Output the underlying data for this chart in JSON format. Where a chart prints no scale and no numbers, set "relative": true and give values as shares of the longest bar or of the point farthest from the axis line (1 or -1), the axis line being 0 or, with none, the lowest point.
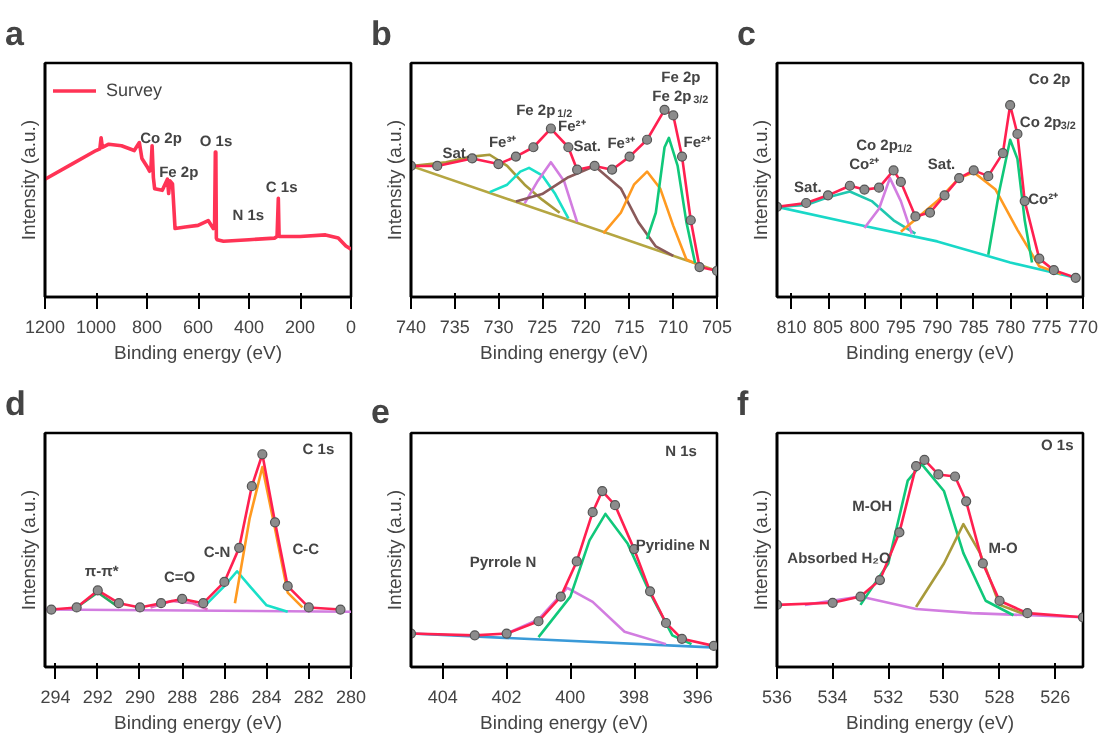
{
  "chart_data": [
    {
      "type": "line",
      "title": "a",
      "xlabel": "Binding energy (eV)",
      "ylabel": "Intensity (a.u.)",
      "relative": true,
      "xlim": [
        1200,
        0
      ],
      "xticks": [
        1200,
        1000,
        800,
        600,
        400,
        200,
        0
      ],
      "tick_labels": "x",
      "grid": false,
      "legend": "top left",
      "series": [
        {
          "name": "Survey",
          "color": "#ff3355",
          "x": [
            1200,
            1100,
            1000,
            985,
            980,
            975,
            950,
            900,
            850,
            830,
            820,
            800,
            790,
            785,
            780,
            775,
            770,
            740,
            720,
            715,
            712,
            710,
            705,
            700,
            690,
            650,
            600,
            560,
            540,
            535,
            532,
            530,
            528,
            525,
            500,
            400,
            300,
            290,
            285,
            282,
            280,
            200,
            100,
            50,
            20,
            0
          ],
          "values": [
            0.74,
            0.83,
            0.92,
            0.93,
            1.0,
            0.94,
            0.96,
            0.95,
            0.92,
            0.97,
            0.87,
            0.82,
            0.79,
            0.8,
            0.95,
            0.75,
            0.68,
            0.67,
            0.74,
            0.65,
            0.7,
            0.73,
            0.72,
            0.71,
            0.43,
            0.44,
            0.45,
            0.48,
            0.43,
            0.45,
            0.91,
            0.91,
            0.37,
            0.36,
            0.35,
            0.36,
            0.37,
            0.38,
            0.62,
            0.38,
            0.38,
            0.38,
            0.39,
            0.37,
            0.32,
            0.3
          ]
        }
      ],
      "annotations": [
        "Co 2p",
        "Fe 2p",
        "O 1s",
        "N 1s",
        "C 1s"
      ]
    },
    {
      "type": "line",
      "title": "b",
      "xlabel": "Binding energy (eV)",
      "ylabel": "Intensity (a.u.)",
      "relative": true,
      "xlim": [
        740,
        705
      ],
      "xticks": [
        740,
        735,
        730,
        725,
        720,
        715,
        710,
        705
      ],
      "tick_labels": "x",
      "grid": false,
      "series": [
        {
          "color": "#b5a642",
          "x": [
            740,
            705
          ],
          "values": [
            0.7,
            0.14
          ]
        },
        {
          "color": "#a89a3a",
          "x": [
            740,
            736,
            733,
            731,
            729,
            727,
            725,
            723
          ],
          "values": [
            0.7,
            0.72,
            0.75,
            0.76,
            0.7,
            0.6,
            0.52,
            0.45
          ]
        },
        {
          "color": "#19e0c8",
          "x": [
            731,
            729,
            727.5,
            726.5,
            725,
            723.5,
            722
          ],
          "values": [
            0.56,
            0.6,
            0.67,
            0.69,
            0.65,
            0.55,
            0.42
          ]
        },
        {
          "color": "#d27de0",
          "x": [
            727,
            725.5,
            724,
            722.5,
            721
          ],
          "values": [
            0.5,
            0.62,
            0.72,
            0.62,
            0.4
          ]
        },
        {
          "color": "#8a5a5a",
          "x": [
            728,
            725,
            722,
            719,
            716,
            714,
            712,
            710
          ],
          "values": [
            0.51,
            0.55,
            0.64,
            0.7,
            0.58,
            0.4,
            0.27,
            0.22
          ]
        },
        {
          "color": "#ff9a20",
          "x": [
            718,
            716,
            714.5,
            713,
            711.5,
            710,
            708.5,
            707
          ],
          "values": [
            0.34,
            0.45,
            0.6,
            0.67,
            0.58,
            0.38,
            0.2,
            0.17
          ]
        },
        {
          "color": "#10c87a",
          "x": [
            713,
            712,
            711,
            710.5,
            709.5,
            708.5,
            707.5
          ],
          "values": [
            0.31,
            0.45,
            0.8,
            0.85,
            0.7,
            0.4,
            0.18
          ]
        },
        {
          "color": "#ff2050",
          "x": [
            740,
            737,
            733,
            730,
            728,
            726,
            724,
            722,
            721,
            719,
            717,
            715,
            713,
            711,
            710,
            709,
            708,
            707,
            705
          ],
          "values": [
            0.7,
            0.7,
            0.74,
            0.71,
            0.75,
            0.8,
            0.9,
            0.8,
            0.68,
            0.7,
            0.68,
            0.75,
            0.84,
            1.0,
            0.97,
            0.75,
            0.41,
            0.16,
            0.14
          ]
        },
        {
          "type": "scatter",
          "marker": "circle",
          "color": "#8c8c8c",
          "x": [
            740,
            737,
            733,
            730,
            728,
            726,
            724,
            722,
            721,
            719,
            717,
            715,
            713,
            711,
            710,
            709,
            708,
            707,
            705
          ],
          "values": [
            0.7,
            0.7,
            0.74,
            0.71,
            0.75,
            0.8,
            0.9,
            0.8,
            0.68,
            0.7,
            0.68,
            0.75,
            0.84,
            1.0,
            0.97,
            0.75,
            0.41,
            0.16,
            0.14
          ]
        }
      ],
      "annotations": [
        "Sat.",
        "Fe³⁺",
        "Fe 2p$_{1/2}$",
        "Fe²⁺",
        "Sat.",
        "Fe³⁺",
        "Fe 2p",
        "Fe 2p$_{3/2}$",
        "Fe²⁺"
      ]
    },
    {
      "type": "line",
      "title": "c",
      "xlabel": "Binding energy (eV)",
      "ylabel": "Intensity (a.u.)",
      "relative": true,
      "xlim": [
        812,
        770
      ],
      "xticks": [
        810,
        805,
        800,
        795,
        790,
        785,
        780,
        775,
        770
      ],
      "tick_labels": "x",
      "grid": false,
      "series": [
        {
          "color": "#19d8c8",
          "x": [
            812,
            800,
            790,
            780,
            771
          ],
          "values": [
            0.47,
            0.37,
            0.29,
            0.18,
            0.1
          ]
        },
        {
          "color": "#20c8b0",
          "x": [
            812,
            808,
            805,
            802,
            799,
            796,
            793
          ],
          "values": [
            0.47,
            0.48,
            0.52,
            0.55,
            0.5,
            0.4,
            0.33
          ]
        },
        {
          "color": "#d27de0",
          "x": [
            800,
            798,
            796.5,
            795,
            793.5
          ],
          "values": [
            0.36,
            0.46,
            0.62,
            0.5,
            0.33
          ]
        },
        {
          "color": "#ff9a20",
          "x": [
            795,
            790,
            787,
            785,
            782,
            779,
            776,
            773
          ],
          "values": [
            0.34,
            0.5,
            0.62,
            0.65,
            0.56,
            0.35,
            0.16,
            0.12
          ]
        },
        {
          "color": "#10c87a",
          "x": [
            783,
            781.5,
            780,
            779,
            778,
            777
          ],
          "values": [
            0.22,
            0.55,
            0.82,
            0.72,
            0.4,
            0.18
          ]
        },
        {
          "color": "#ff2050",
          "x": [
            812,
            808,
            805,
            802,
            800,
            798,
            796,
            795,
            793,
            791,
            789,
            787,
            785,
            783,
            781,
            780,
            779,
            778,
            776,
            774,
            771
          ],
          "values": [
            0.47,
            0.49,
            0.53,
            0.58,
            0.56,
            0.57,
            0.66,
            0.6,
            0.42,
            0.44,
            0.53,
            0.62,
            0.66,
            0.63,
            0.75,
            1.0,
            0.85,
            0.5,
            0.2,
            0.14,
            0.1
          ]
        },
        {
          "type": "scatter",
          "marker": "circle",
          "color": "#8c8c8c",
          "x": [
            812,
            808,
            805,
            802,
            800,
            798,
            796,
            795,
            793,
            791,
            789,
            787,
            785,
            783,
            781,
            780,
            779,
            778,
            776,
            774,
            771
          ],
          "values": [
            0.47,
            0.49,
            0.53,
            0.58,
            0.56,
            0.57,
            0.66,
            0.6,
            0.42,
            0.44,
            0.53,
            0.62,
            0.66,
            0.63,
            0.75,
            1.0,
            0.85,
            0.5,
            0.2,
            0.14,
            0.1
          ]
        }
      ],
      "annotations": [
        "Sat.",
        "Co²⁺",
        "Co 2p$_{1/2}$",
        "Sat.",
        "Co 2p",
        "Co 2p$_{3/2}$",
        "Co²⁺"
      ]
    },
    {
      "type": "line",
      "title": "d",
      "xlabel": "Binding energy (eV)",
      "ylabel": "Intensity (a.u.)",
      "relative": true,
      "xlim": [
        294.5,
        280
      ],
      "xticks": [
        294,
        292,
        290,
        288,
        286,
        284,
        282,
        280
      ],
      "tick_labels": "x",
      "grid": false,
      "series": [
        {
          "color": "#d27de0",
          "x": [
            294.5,
            280
          ],
          "values": [
            0.27,
            0.26
          ]
        },
        {
          "color": "#2aa860",
          "x": [
            293,
            292,
            291
          ],
          "values": [
            0.28,
            0.35,
            0.28
          ]
        },
        {
          "color": "#e070c0",
          "x": [
            289.5,
            288.5,
            287.5,
            286.8
          ],
          "values": [
            0.28,
            0.31,
            0.3,
            0.27
          ]
        },
        {
          "color": "#19e0c8",
          "x": [
            287,
            286,
            285.4,
            284.8,
            284,
            283
          ],
          "values": [
            0.28,
            0.38,
            0.45,
            0.38,
            0.29,
            0.26
          ]
        },
        {
          "color": "#ff9a20",
          "x": [
            285.5,
            284.8,
            284.2,
            283.6,
            283,
            282.3
          ],
          "values": [
            0.3,
            0.7,
            0.94,
            0.65,
            0.35,
            0.28
          ]
        },
        {
          "color": "#ff2050",
          "x": [
            294.2,
            293,
            292,
            291,
            290,
            289,
            288,
            287,
            286,
            285.3,
            284.7,
            284.2,
            283.6,
            283,
            282,
            280.5
          ],
          "values": [
            0.27,
            0.28,
            0.36,
            0.3,
            0.28,
            0.3,
            0.32,
            0.3,
            0.4,
            0.56,
            0.85,
            1.0,
            0.68,
            0.38,
            0.28,
            0.27
          ]
        },
        {
          "type": "scatter",
          "marker": "circle",
          "color": "#8c8c8c",
          "x": [
            294.2,
            293,
            292,
            291,
            290,
            289,
            288,
            287,
            286,
            285.3,
            284.7,
            284.2,
            283.6,
            283,
            282,
            280.5
          ],
          "values": [
            0.27,
            0.28,
            0.36,
            0.3,
            0.28,
            0.3,
            0.32,
            0.3,
            0.4,
            0.56,
            0.85,
            1.0,
            0.68,
            0.38,
            0.28,
            0.27
          ]
        }
      ],
      "annotations": [
        "C 1s",
        "π-π*",
        "C=O",
        "C-N",
        "C-C"
      ]
    },
    {
      "type": "line",
      "title": "e",
      "xlabel": "Binding energy (eV)",
      "ylabel": "Intensity (a.u.)",
      "relative": true,
      "xlim": [
        405,
        395.4
      ],
      "xticks": [
        404,
        402,
        400,
        398,
        396
      ],
      "tick_labels": "x",
      "grid": false,
      "series": [
        {
          "color": "#3a9ad8",
          "x": [
            405,
            395.4
          ],
          "values": [
            0.19,
            0.11
          ]
        },
        {
          "color": "#d27de0",
          "x": [
            402,
            401,
            400.1,
            399.3,
            398.3,
            397
          ],
          "values": [
            0.19,
            0.27,
            0.45,
            0.37,
            0.2,
            0.13
          ]
        },
        {
          "color": "#10c87a",
          "x": [
            401,
            400,
            399.4,
            398.9,
            398.2,
            397.5,
            396.8,
            396.2
          ],
          "values": [
            0.17,
            0.4,
            0.72,
            0.87,
            0.7,
            0.42,
            0.18,
            0.13
          ]
        },
        {
          "color": "#ff2050",
          "x": [
            405,
            403,
            402,
            401,
            400.3,
            399.8,
            399.3,
            399,
            398.6,
            398,
            397.5,
            397,
            396.5,
            395.5
          ],
          "values": [
            0.19,
            0.18,
            0.19,
            0.26,
            0.4,
            0.6,
            0.88,
            1.0,
            0.92,
            0.67,
            0.43,
            0.25,
            0.16,
            0.12
          ]
        },
        {
          "type": "scatter",
          "marker": "circle",
          "color": "#8c8c8c",
          "x": [
            405,
            403,
            402,
            401,
            400.3,
            399.8,
            399.3,
            399,
            398.6,
            398,
            397.5,
            397,
            396.5,
            395.5
          ],
          "values": [
            0.19,
            0.18,
            0.19,
            0.26,
            0.4,
            0.6,
            0.88,
            1.0,
            0.92,
            0.67,
            0.43,
            0.25,
            0.16,
            0.12
          ]
        }
      ],
      "annotations": [
        "N 1s",
        "Pyrrole N",
        "Pyridine N"
      ]
    },
    {
      "type": "line",
      "title": "f",
      "xlabel": "Binding energy (eV)",
      "ylabel": "Intensity (a.u.)",
      "relative": true,
      "xlim": [
        536,
        525
      ],
      "xticks": [
        536,
        534,
        532,
        530,
        528,
        526
      ],
      "tick_labels": "x",
      "grid": false,
      "series": [
        {
          "color": "#d27de0",
          "x": [
            535,
            533,
            532,
            531,
            529,
            525
          ],
          "values": [
            0.3,
            0.34,
            0.31,
            0.28,
            0.26,
            0.24
          ]
        },
        {
          "color": "#10c87a",
          "x": [
            533,
            532,
            531.3,
            530.8,
            530,
            529.3,
            528.5,
            527.5
          ],
          "values": [
            0.3,
            0.5,
            0.9,
            0.98,
            0.85,
            0.55,
            0.32,
            0.25
          ]
        },
        {
          "color": "#a89a3a",
          "x": [
            531,
            530,
            529.3,
            528.7,
            528,
            527
          ],
          "values": [
            0.29,
            0.5,
            0.69,
            0.55,
            0.3,
            0.25
          ]
        },
        {
          "color": "#ff2050",
          "x": [
            536,
            534,
            533,
            532.3,
            531.6,
            531,
            530.7,
            530.2,
            529.6,
            529.2,
            528.6,
            528,
            527,
            525
          ],
          "values": [
            0.3,
            0.31,
            0.34,
            0.42,
            0.65,
            0.97,
            1.0,
            0.93,
            0.92,
            0.8,
            0.5,
            0.32,
            0.26,
            0.24
          ]
        },
        {
          "type": "scatter",
          "marker": "circle",
          "color": "#8c8c8c",
          "x": [
            536,
            534,
            533,
            532.3,
            531.6,
            531,
            530.7,
            530.2,
            529.6,
            529.2,
            528.6,
            528,
            527,
            525
          ],
          "values": [
            0.3,
            0.31,
            0.34,
            0.42,
            0.65,
            0.97,
            1.0,
            0.93,
            0.92,
            0.8,
            0.5,
            0.32,
            0.26,
            0.24
          ]
        }
      ],
      "annotations": [
        "O 1s",
        "M-OH",
        "M-O",
        "Absorbed H₂O"
      ]
    }
  ]
}
